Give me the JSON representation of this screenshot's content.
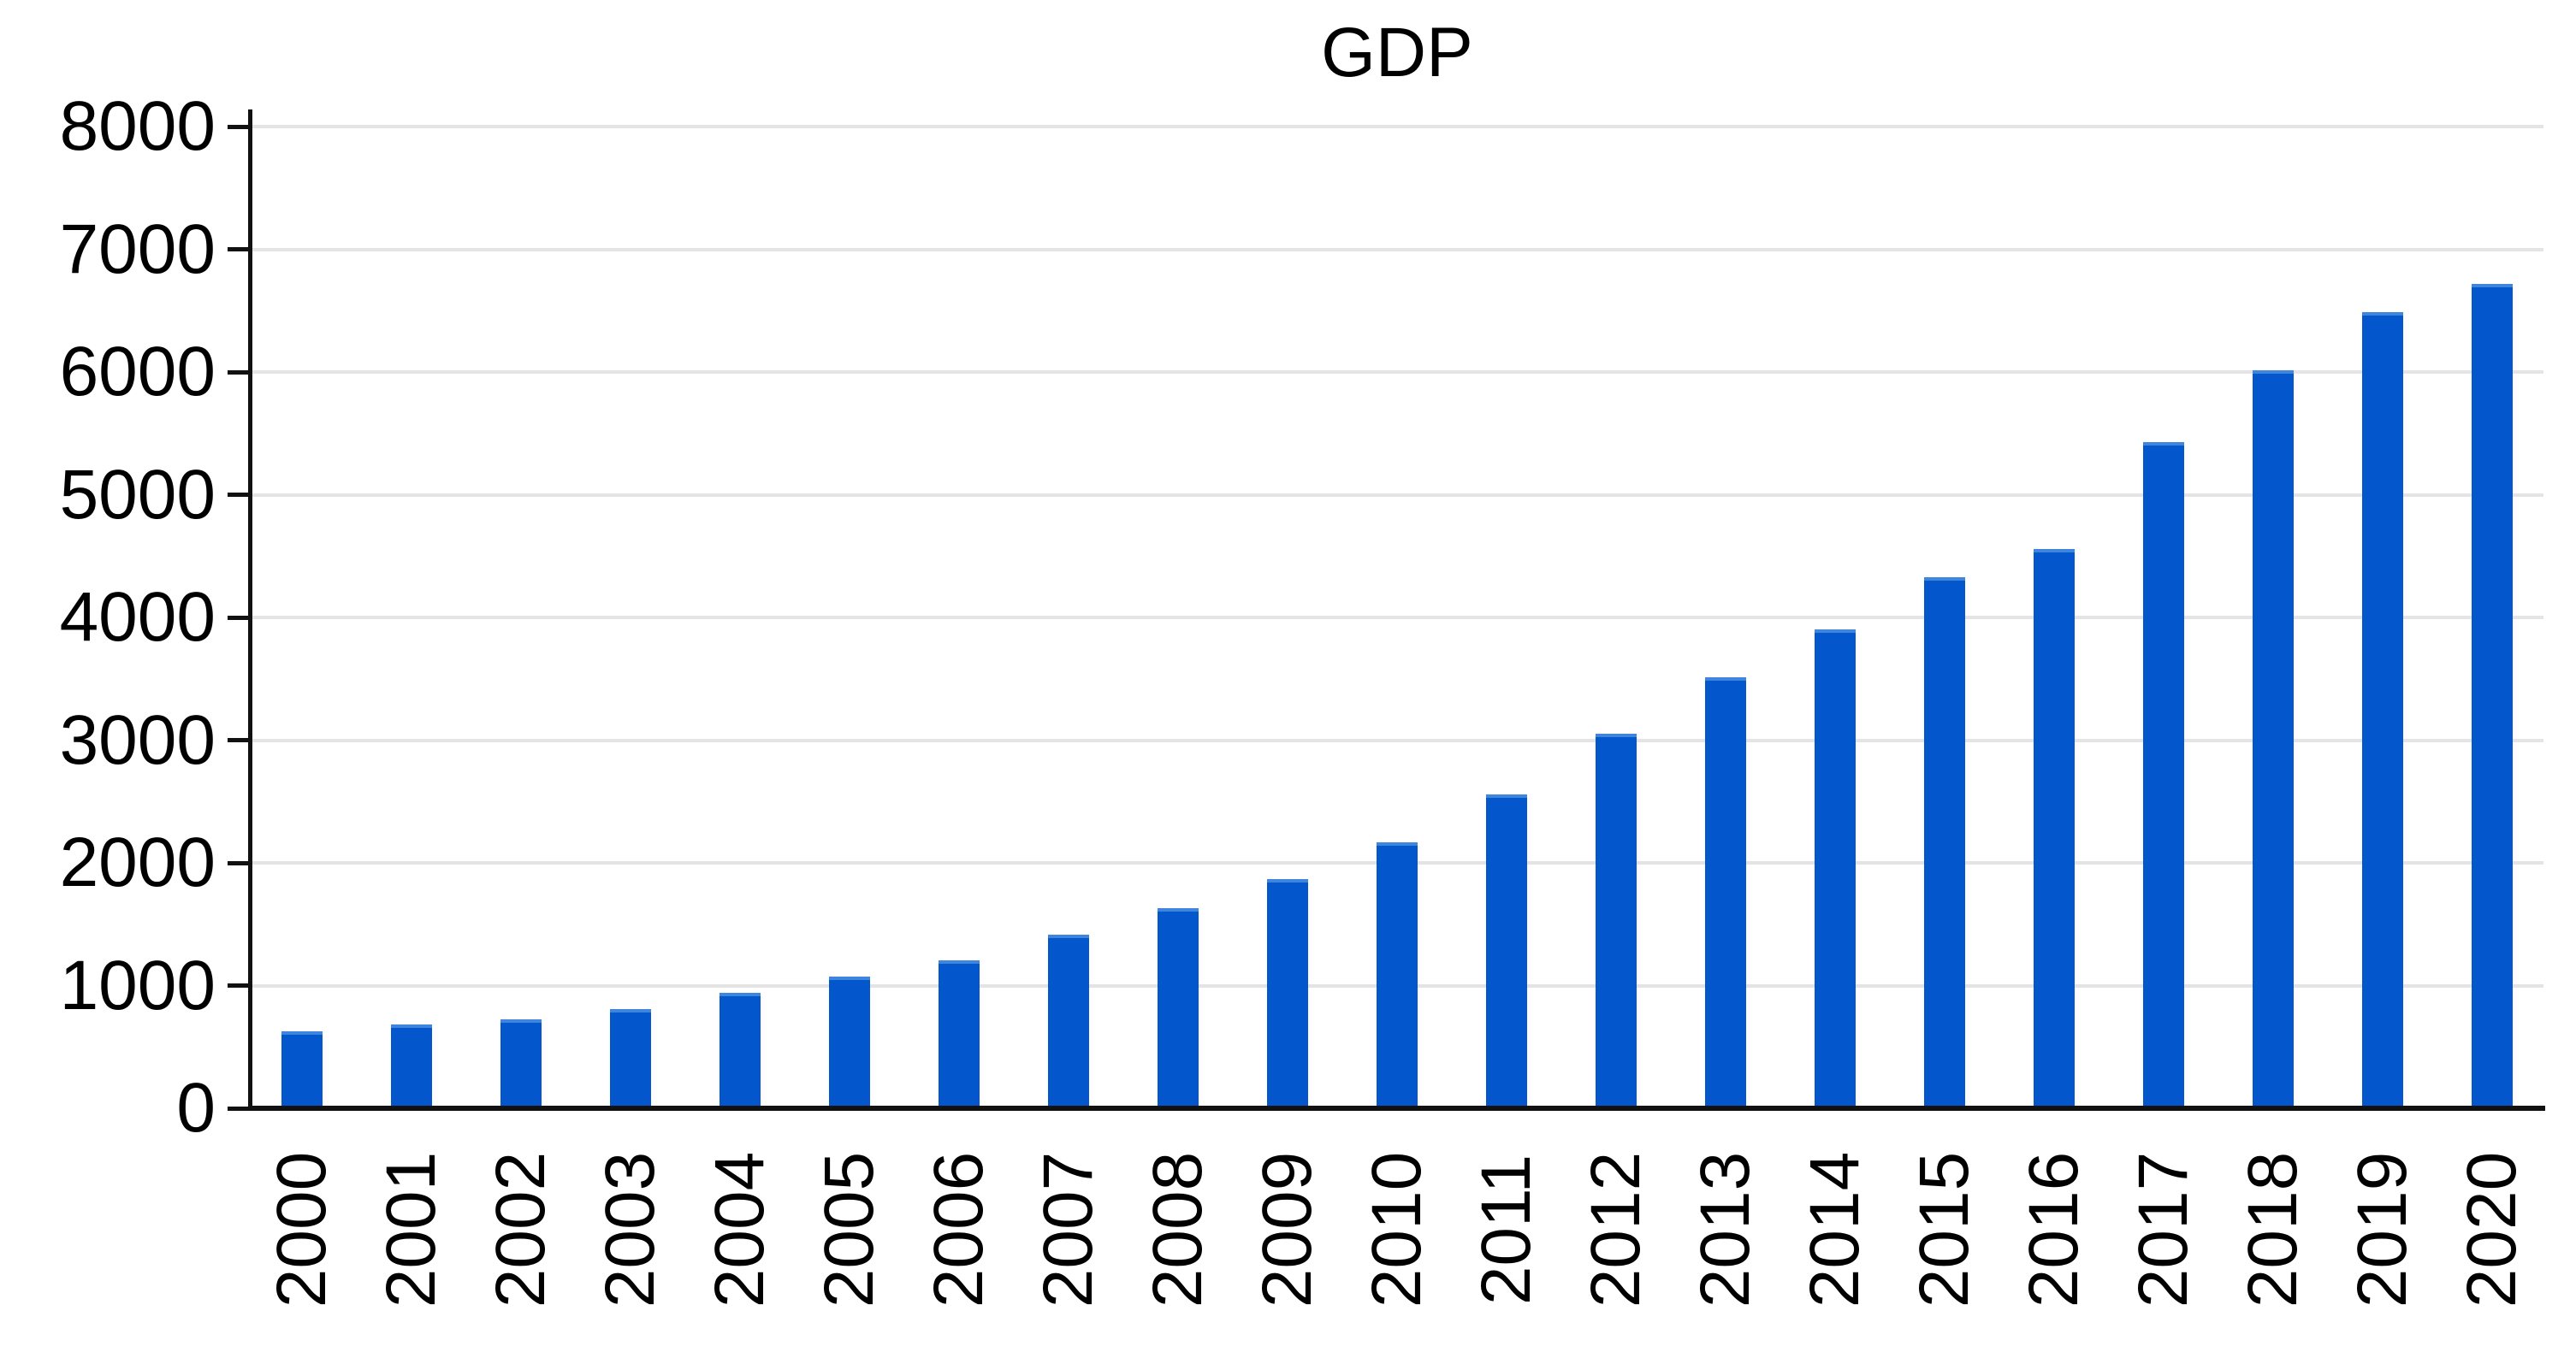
{
  "chart_data": {
    "type": "bar",
    "title": "GDP",
    "categories": [
      "2000",
      "2001",
      "2002",
      "2003",
      "2004",
      "2005",
      "2006",
      "2007",
      "2008",
      "2009",
      "2010",
      "2011",
      "2012",
      "2013",
      "2014",
      "2015",
      "2016",
      "2017",
      "2018",
      "2019",
      "2020"
    ],
    "values": [
      630,
      680,
      725,
      810,
      940,
      1075,
      1205,
      1415,
      1630,
      1865,
      2170,
      2560,
      3050,
      3515,
      3905,
      4330,
      4555,
      5430,
      6015,
      6485,
      6720
    ],
    "series_name": "GDP",
    "xlabel": "",
    "ylabel": "",
    "ylim": [
      0,
      8200
    ],
    "yticks": [
      0,
      1000,
      2000,
      3000,
      4000,
      5000,
      6000,
      7000,
      8000
    ],
    "grid": true,
    "legend_position": "none",
    "x_tick_rotation_degrees": 90
  },
  "colors": {
    "bar": "#0456CD",
    "bar_cap": "#3D85DD",
    "gridline": "#E4E4E5",
    "axis": "#111111",
    "text": "#000000",
    "background": "#FFFFFF"
  }
}
